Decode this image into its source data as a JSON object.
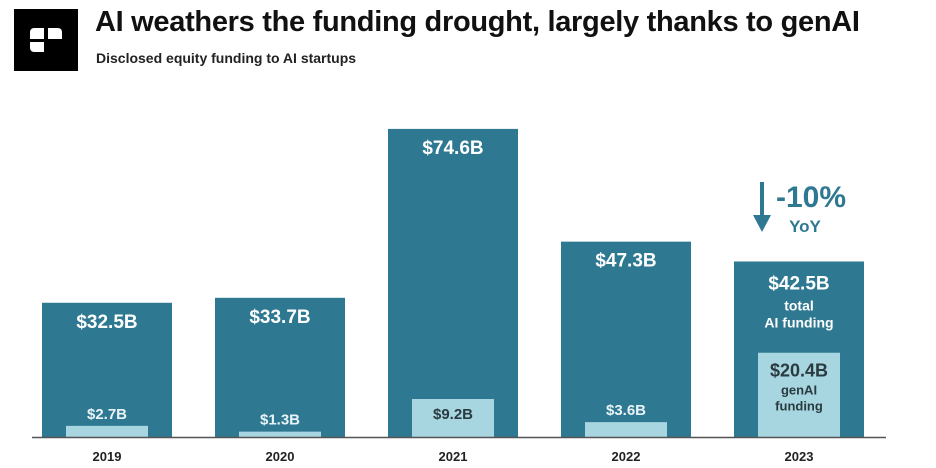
{
  "header": {
    "title": "AI weathers the funding drought, largely thanks to genAI",
    "subtitle": "Disclosed equity funding to AI startups"
  },
  "chart_data": {
    "type": "bar",
    "title": "AI weathers the funding drought, largely thanks to genAI",
    "subtitle": "Disclosed equity funding to AI startups",
    "xlabel": "",
    "ylabel": "",
    "categories": [
      "2019",
      "2020",
      "2021",
      "2022",
      "2023"
    ],
    "ylim": [
      0,
      80
    ],
    "series": [
      {
        "name": "total AI funding",
        "values": [
          32.5,
          33.7,
          74.6,
          47.3,
          42.5
        ],
        "labels": [
          "$32.5B",
          "$33.7B",
          "$74.6B",
          "$47.3B",
          "$42.5B"
        ],
        "color": "#2e7891"
      },
      {
        "name": "genAI funding",
        "values": [
          2.7,
          1.3,
          9.2,
          3.6,
          20.4
        ],
        "labels": [
          "$2.7B",
          "$1.3B",
          "$9.2B",
          "$3.6B",
          "$20.4B"
        ],
        "color": "#a8d6e0"
      }
    ],
    "annotations": {
      "total_note": [
        "total",
        "AI funding"
      ],
      "genai_note": [
        "genAI",
        "funding"
      ],
      "change": "-10%",
      "change_unit": "YoY",
      "change_color": "#2e7891"
    }
  }
}
